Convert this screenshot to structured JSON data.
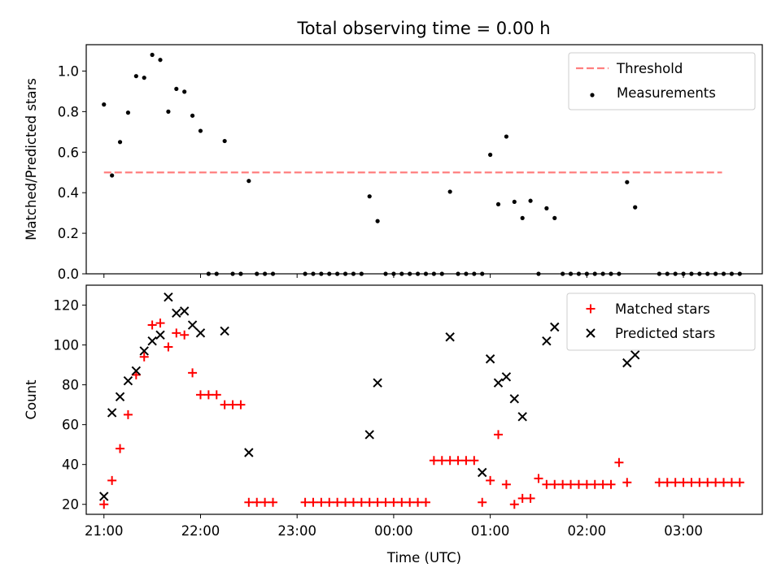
{
  "figure": {
    "title": "Total observing time = 0.00 h"
  },
  "chart_data": [
    {
      "type": "scatter",
      "title": "Total observing time = 0.00 h",
      "ylabel": "Matched/Predicted stars",
      "xlabel": "",
      "xlim": [
        "20:49",
        "03:49"
      ],
      "ylim": [
        0,
        1.13
      ],
      "yticks": [
        "0.0",
        "0.2",
        "0.4",
        "0.6",
        "0.8",
        "1.0"
      ],
      "xticks_shown": false,
      "grid": false,
      "legend_position": "top-right",
      "threshold": {
        "name": "Threshold",
        "y": 0.5,
        "x_range": [
          "21:00",
          "03:24"
        ],
        "color": "#ff7f7f",
        "style": "dashed"
      },
      "series": [
        {
          "name": "Measurements",
          "color": "#000000",
          "marker": "dot",
          "points": [
            [
              "21:00",
              0.835
            ],
            [
              "21:05",
              0.485
            ],
            [
              "21:10",
              0.65
            ],
            [
              "21:15",
              0.795
            ],
            [
              "21:20",
              0.975
            ],
            [
              "21:25",
              0.967
            ],
            [
              "21:30",
              1.08
            ],
            [
              "21:35",
              1.055
            ],
            [
              "21:40",
              0.8
            ],
            [
              "21:45",
              0.912
            ],
            [
              "21:50",
              0.898
            ],
            [
              "21:55",
              0.78
            ],
            [
              "22:00",
              0.705
            ],
            [
              "22:05",
              0.0
            ],
            [
              "22:10",
              0.0
            ],
            [
              "22:15",
              0.655
            ],
            [
              "22:20",
              0.0
            ],
            [
              "22:25",
              0.0
            ],
            [
              "22:30",
              0.458
            ],
            [
              "22:35",
              0.0
            ],
            [
              "22:40",
              0.0
            ],
            [
              "22:45",
              0.0
            ],
            [
              "23:05",
              0.0
            ],
            [
              "23:10",
              0.0
            ],
            [
              "23:15",
              0.0
            ],
            [
              "23:20",
              0.0
            ],
            [
              "23:25",
              0.0
            ],
            [
              "23:30",
              0.0
            ],
            [
              "23:35",
              0.0
            ],
            [
              "23:40",
              0.0
            ],
            [
              "23:45",
              0.382
            ],
            [
              "23:50",
              0.26
            ],
            [
              "23:55",
              0.0
            ],
            [
              "00:00",
              0.0
            ],
            [
              "00:05",
              0.0
            ],
            [
              "00:10",
              0.0
            ],
            [
              "00:15",
              0.0
            ],
            [
              "00:20",
              0.0
            ],
            [
              "00:25",
              0.0
            ],
            [
              "00:30",
              0.0
            ],
            [
              "00:35",
              0.405
            ],
            [
              "00:40",
              0.0
            ],
            [
              "00:45",
              0.0
            ],
            [
              "00:50",
              0.0
            ],
            [
              "00:55",
              0.0
            ],
            [
              "01:00",
              0.587
            ],
            [
              "01:05",
              0.343
            ],
            [
              "01:10",
              0.677
            ],
            [
              "01:15",
              0.355
            ],
            [
              "01:20",
              0.275
            ],
            [
              "01:25",
              0.36
            ],
            [
              "01:30",
              0.0
            ],
            [
              "01:35",
              0.323
            ],
            [
              "01:40",
              0.275
            ],
            [
              "01:45",
              0.0
            ],
            [
              "01:50",
              0.0
            ],
            [
              "01:55",
              0.0
            ],
            [
              "02:00",
              0.0
            ],
            [
              "02:05",
              0.0
            ],
            [
              "02:10",
              0.0
            ],
            [
              "02:15",
              0.0
            ],
            [
              "02:20",
              0.0
            ],
            [
              "02:25",
              0.452
            ],
            [
              "02:30",
              0.328
            ],
            [
              "02:45",
              0.0
            ],
            [
              "02:50",
              0.0
            ],
            [
              "02:55",
              0.0
            ],
            [
              "03:00",
              0.0
            ],
            [
              "03:05",
              0.0
            ],
            [
              "03:10",
              0.0
            ],
            [
              "03:15",
              0.0
            ],
            [
              "03:20",
              0.0
            ],
            [
              "03:25",
              0.0
            ],
            [
              "03:30",
              0.0
            ],
            [
              "03:35",
              0.0
            ]
          ]
        }
      ]
    },
    {
      "type": "scatter",
      "title": "",
      "ylabel": "Count",
      "xlabel": "Time (UTC)",
      "xlim": [
        "20:49",
        "03:49"
      ],
      "ylim": [
        15,
        130
      ],
      "yticks": [
        "20",
        "40",
        "60",
        "80",
        "100",
        "120"
      ],
      "xticks": [
        "21:00",
        "22:00",
        "23:00",
        "00:00",
        "01:00",
        "02:00",
        "03:00"
      ],
      "grid": false,
      "legend_position": "top-right",
      "series": [
        {
          "name": "Matched stars",
          "color": "#ff0000",
          "marker": "plus",
          "points": [
            [
              "21:00",
              20
            ],
            [
              "21:05",
              32
            ],
            [
              "21:10",
              48
            ],
            [
              "21:15",
              65
            ],
            [
              "21:20",
              85
            ],
            [
              "21:25",
              94
            ],
            [
              "21:30",
              110
            ],
            [
              "21:35",
              111
            ],
            [
              "21:40",
              99
            ],
            [
              "21:45",
              106
            ],
            [
              "21:50",
              105
            ],
            [
              "21:55",
              86
            ],
            [
              "22:00",
              75
            ],
            [
              "22:05",
              75
            ],
            [
              "22:10",
              75
            ],
            [
              "22:15",
              70
            ],
            [
              "22:20",
              70
            ],
            [
              "22:25",
              70
            ],
            [
              "22:30",
              21
            ],
            [
              "22:35",
              21
            ],
            [
              "22:40",
              21
            ],
            [
              "22:45",
              21
            ],
            [
              "23:05",
              21
            ],
            [
              "23:10",
              21
            ],
            [
              "23:15",
              21
            ],
            [
              "23:20",
              21
            ],
            [
              "23:25",
              21
            ],
            [
              "23:30",
              21
            ],
            [
              "23:35",
              21
            ],
            [
              "23:40",
              21
            ],
            [
              "23:45",
              21
            ],
            [
              "23:50",
              21
            ],
            [
              "23:55",
              21
            ],
            [
              "00:00",
              21
            ],
            [
              "00:05",
              21
            ],
            [
              "00:10",
              21
            ],
            [
              "00:15",
              21
            ],
            [
              "00:20",
              21
            ],
            [
              "00:25",
              42
            ],
            [
              "00:30",
              42
            ],
            [
              "00:35",
              42
            ],
            [
              "00:40",
              42
            ],
            [
              "00:45",
              42
            ],
            [
              "00:50",
              42
            ],
            [
              "00:55",
              21
            ],
            [
              "01:00",
              32
            ],
            [
              "01:05",
              55
            ],
            [
              "01:10",
              30
            ],
            [
              "01:15",
              20
            ],
            [
              "01:20",
              23
            ],
            [
              "01:25",
              23
            ],
            [
              "01:30",
              33
            ],
            [
              "01:35",
              30
            ],
            [
              "01:40",
              30
            ],
            [
              "01:45",
              30
            ],
            [
              "01:50",
              30
            ],
            [
              "01:55",
              30
            ],
            [
              "02:00",
              30
            ],
            [
              "02:05",
              30
            ],
            [
              "02:10",
              30
            ],
            [
              "02:15",
              30
            ],
            [
              "02:20",
              41
            ],
            [
              "02:25",
              31
            ],
            [
              "02:45",
              31
            ],
            [
              "02:50",
              31
            ],
            [
              "02:55",
              31
            ],
            [
              "03:00",
              31
            ],
            [
              "03:05",
              31
            ],
            [
              "03:10",
              31
            ],
            [
              "03:15",
              31
            ],
            [
              "03:20",
              31
            ],
            [
              "03:25",
              31
            ],
            [
              "03:30",
              31
            ],
            [
              "03:35",
              31
            ]
          ]
        },
        {
          "name": "Predicted stars",
          "color": "#000000",
          "marker": "cross",
          "points": [
            [
              "21:00",
              24
            ],
            [
              "21:05",
              66
            ],
            [
              "21:10",
              74
            ],
            [
              "21:15",
              82
            ],
            [
              "21:20",
              87
            ],
            [
              "21:25",
              97
            ],
            [
              "21:30",
              102
            ],
            [
              "21:35",
              105
            ],
            [
              "21:40",
              124
            ],
            [
              "21:45",
              116
            ],
            [
              "21:50",
              117
            ],
            [
              "21:55",
              110
            ],
            [
              "22:00",
              106
            ],
            [
              "22:15",
              107
            ],
            [
              "22:30",
              46
            ],
            [
              "23:45",
              55
            ],
            [
              "23:50",
              81
            ],
            [
              "00:35",
              104
            ],
            [
              "00:55",
              36
            ],
            [
              "01:00",
              93
            ],
            [
              "01:05",
              81
            ],
            [
              "01:10",
              84
            ],
            [
              "01:15",
              73
            ],
            [
              "01:20",
              64
            ],
            [
              "01:35",
              102
            ],
            [
              "01:40",
              109
            ],
            [
              "02:25",
              91
            ],
            [
              "02:30",
              95
            ]
          ]
        }
      ]
    }
  ]
}
